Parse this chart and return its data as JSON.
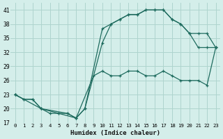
{
  "xlabel": "Humidex (Indice chaleur)",
  "bg_color": "#d4eeea",
  "grid_color": "#aed4ce",
  "line_color": "#1e6b5e",
  "xlim": [
    -0.5,
    23.5
  ],
  "ylim": [
    17,
    42.5
  ],
  "xticks": [
    0,
    1,
    2,
    3,
    4,
    5,
    6,
    7,
    8,
    9,
    10,
    11,
    12,
    13,
    14,
    15,
    16,
    17,
    18,
    19,
    20,
    21,
    22,
    23
  ],
  "yticks": [
    17,
    20,
    23,
    26,
    29,
    32,
    35,
    38,
    41
  ],
  "line1_x": [
    0,
    1,
    2,
    3,
    5,
    7,
    9,
    10,
    11,
    12,
    13,
    14,
    15,
    16,
    17,
    18,
    19,
    20,
    21,
    22,
    23
  ],
  "line1_y": [
    23,
    22,
    22,
    20,
    19,
    18,
    27,
    28,
    27,
    27,
    28,
    28,
    27,
    27,
    28,
    27,
    26,
    26,
    26,
    25,
    33
  ],
  "line2_x": [
    0,
    1,
    2,
    3,
    4,
    5,
    6,
    7,
    8,
    10,
    11,
    12,
    13,
    14,
    15,
    16,
    17,
    18,
    19,
    20,
    21,
    22,
    23
  ],
  "line2_y": [
    23,
    22,
    22,
    20,
    19,
    19,
    19,
    18,
    20,
    37,
    38,
    39,
    40,
    40,
    41,
    41,
    41,
    39,
    38,
    36,
    33,
    33,
    33
  ],
  "line3_x": [
    0,
    3,
    6,
    7,
    8,
    10,
    11,
    12,
    13,
    14,
    15,
    16,
    17,
    18,
    19,
    20,
    21,
    22,
    23
  ],
  "line3_y": [
    23,
    20,
    19,
    18,
    20,
    34,
    38,
    39,
    40,
    40,
    41,
    41,
    41,
    39,
    38,
    36,
    36,
    36,
    33
  ]
}
